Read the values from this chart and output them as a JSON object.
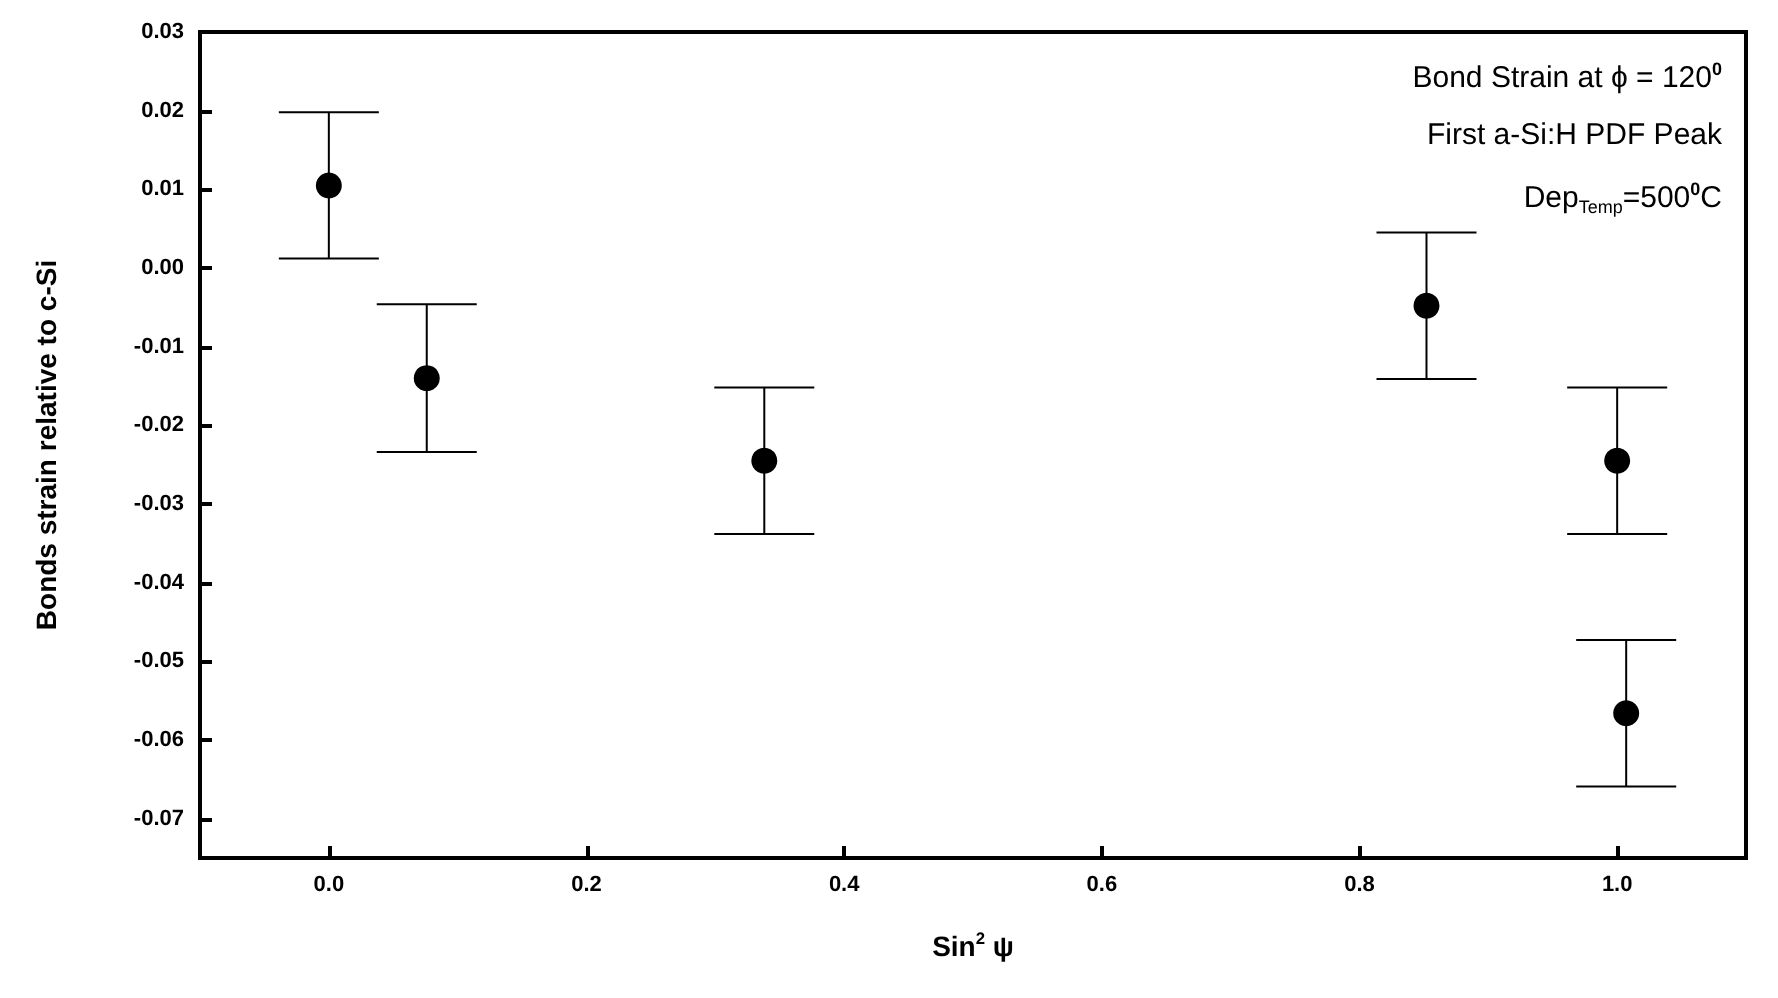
{
  "chart_data": {
    "type": "scatter",
    "xlabel": "Sin$^{2}$ ψ",
    "ylabel": "Bonds strain relative to c-Si",
    "annotations": [
      "Bond Strain at ϕ = 120$^{0}$",
      "First a-Si:H PDF Peak",
      "Dep$_{Temp}$=500$^{0}$C"
    ],
    "x": [
      0.0,
      0.076,
      0.338,
      0.852,
      1.0,
      1.007
    ],
    "values": [
      0.0105,
      -0.014,
      -0.0245,
      -0.0048,
      -0.0245,
      -0.0566
    ],
    "errors": [
      0.0093,
      0.0094,
      0.0093,
      0.0093,
      0.0093,
      0.0093
    ],
    "color": "#000000",
    "marker": "circle",
    "xlim": [
      -0.1,
      1.1
    ],
    "xticks": [
      {
        "value": 0,
        "label": "0.0"
      },
      {
        "value": 0.2,
        "label": "0.2"
      },
      {
        "value": 0.4,
        "label": "0.4"
      },
      {
        "value": 0.6,
        "label": "0.6"
      },
      {
        "value": 0.8,
        "label": "0.8"
      },
      {
        "value": 1,
        "label": "1.0"
      }
    ],
    "ylim": [
      -0.075,
      0.03
    ],
    "yticks": [
      {
        "value": -0.07,
        "label": "-0.07"
      },
      {
        "value": -0.06,
        "label": "-0.06"
      },
      {
        "value": -0.05,
        "label": "-0.05"
      },
      {
        "value": -0.04,
        "label": "-0.04"
      },
      {
        "value": -0.03,
        "label": "-0.03"
      },
      {
        "value": -0.02,
        "label": "-0.02"
      },
      {
        "value": -0.01,
        "label": "-0.01"
      },
      {
        "value": 0,
        "label": "0.00"
      },
      {
        "value": 0.01,
        "label": "0.01"
      },
      {
        "value": 0.02,
        "label": "0.02"
      },
      {
        "value": 0.03,
        "label": "0.03"
      }
    ]
  }
}
